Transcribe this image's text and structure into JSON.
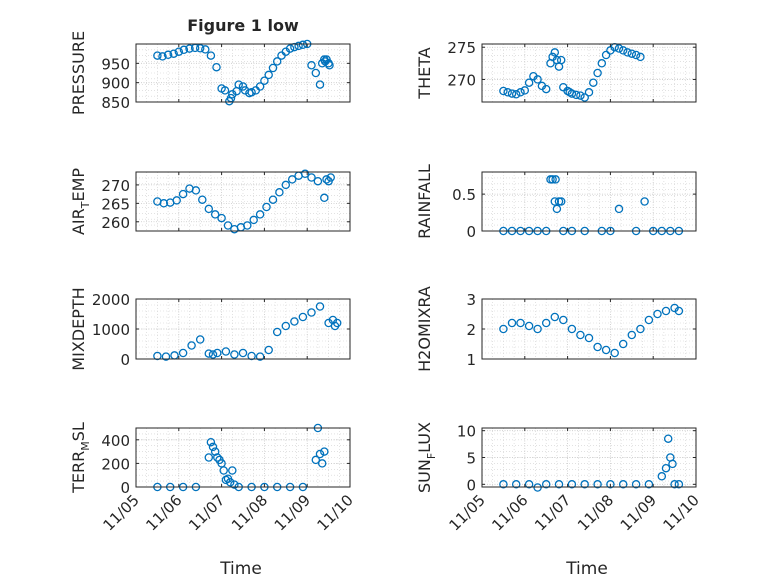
{
  "figure": {
    "title": "Figure 1 low"
  },
  "x_ticks": [
    "11/05",
    "11/06",
    "11/07",
    "11/08",
    "11/09",
    "11/10"
  ],
  "xlabel": "Time",
  "marker_color": "#0072BD",
  "chart_data": [
    {
      "type": "scatter",
      "ylabel": "PRESSURE",
      "ylim": [
        850,
        1000
      ],
      "yticks": [
        850,
        900,
        950
      ],
      "xlim": [
        0,
        5
      ],
      "grid": true,
      "x": [
        0.5,
        0.62,
        0.75,
        0.88,
        1.0,
        1.12,
        1.25,
        1.38,
        1.5,
        1.62,
        1.75,
        1.88,
        2.0,
        2.08,
        2.18,
        2.22,
        2.25,
        2.35,
        2.4,
        2.5,
        2.55,
        2.65,
        2.7,
        2.8,
        2.9,
        3.0,
        3.1,
        3.2,
        3.3,
        3.4,
        3.5,
        3.6,
        3.7,
        3.8,
        3.9,
        4.0,
        4.1,
        4.2,
        4.3,
        4.35,
        4.4,
        4.42,
        4.45,
        4.5,
        4.52
      ],
      "y": [
        970,
        968,
        972,
        975,
        980,
        985,
        988,
        990,
        989,
        986,
        970,
        940,
        885,
        880,
        852,
        860,
        870,
        878,
        895,
        890,
        880,
        873,
        875,
        880,
        890,
        905,
        920,
        938,
        955,
        970,
        980,
        988,
        992,
        995,
        998,
        1000,
        945,
        925,
        895,
        950,
        960,
        955,
        960,
        950,
        945
      ]
    },
    {
      "type": "scatter",
      "ylabel": "THETA",
      "ylim": [
        266.5,
        275.5
      ],
      "yticks": [
        270,
        275
      ],
      "xlim": [
        0,
        5
      ],
      "grid": true,
      "x": [
        0.5,
        0.6,
        0.7,
        0.8,
        0.9,
        1.0,
        1.1,
        1.2,
        1.3,
        1.4,
        1.5,
        1.6,
        1.65,
        1.7,
        1.75,
        1.8,
        1.85,
        1.9,
        2.0,
        2.05,
        2.1,
        2.2,
        2.3,
        2.4,
        2.5,
        2.6,
        2.7,
        2.8,
        2.9,
        3.0,
        3.1,
        3.2,
        3.3,
        3.4,
        3.5,
        3.6,
        3.7
      ],
      "y": [
        268.2,
        268.0,
        267.8,
        267.7,
        268.0,
        268.3,
        269.5,
        270.5,
        270.0,
        269.0,
        268.5,
        272.5,
        273.5,
        274.2,
        273.0,
        272.0,
        273.0,
        268.8,
        268.2,
        268.0,
        267.8,
        267.6,
        267.5,
        267.2,
        268.0,
        269.5,
        271.0,
        272.5,
        273.8,
        274.5,
        275.0,
        274.8,
        274.5,
        274.2,
        274.0,
        273.8,
        273.5
      ]
    },
    {
      "type": "scatter",
      "ylabel": "AIR_TEMP",
      "ylim": [
        257.5,
        273.5
      ],
      "yticks": [
        260,
        265,
        270
      ],
      "xlim": [
        0,
        5
      ],
      "grid": true,
      "x": [
        0.5,
        0.65,
        0.8,
        0.95,
        1.1,
        1.25,
        1.4,
        1.55,
        1.7,
        1.85,
        2.0,
        2.15,
        2.3,
        2.45,
        2.6,
        2.75,
        2.9,
        3.05,
        3.2,
        3.35,
        3.5,
        3.65,
        3.8,
        3.95,
        4.1,
        4.25,
        4.4,
        4.45,
        4.5,
        4.55
      ],
      "y": [
        265.5,
        265.0,
        265.2,
        265.8,
        267.5,
        269.0,
        268.5,
        266.0,
        263.5,
        262.0,
        261.0,
        259.0,
        258.0,
        258.5,
        259.0,
        260.5,
        262.0,
        264.0,
        266.0,
        268.0,
        270.0,
        271.5,
        272.5,
        273.0,
        272.0,
        271.0,
        266.5,
        271.5,
        271.0,
        272.0
      ]
    },
    {
      "type": "scatter",
      "ylabel": "RAINFALL",
      "ylim": [
        0,
        0.8
      ],
      "yticks": [
        0,
        0.5
      ],
      "xlim": [
        0,
        5
      ],
      "grid": true,
      "x": [
        0.5,
        0.7,
        0.9,
        1.1,
        1.3,
        1.5,
        1.6,
        1.65,
        1.7,
        1.72,
        1.75,
        1.8,
        1.85,
        1.9,
        2.1,
        2.4,
        2.8,
        3.0,
        3.2,
        3.6,
        3.8,
        4.0,
        4.2,
        4.4,
        4.6
      ],
      "y": [
        0,
        0,
        0,
        0,
        0,
        0,
        0.7,
        0.7,
        0.4,
        0.7,
        0.3,
        0.4,
        0.4,
        0,
        0,
        0,
        0,
        0,
        0.3,
        0,
        0.4,
        0,
        0,
        0,
        0
      ]
    },
    {
      "type": "scatter",
      "ylabel": "MIXDEPTH",
      "ylim": [
        0,
        2000
      ],
      "yticks": [
        0,
        1000,
        2000
      ],
      "xlim": [
        0,
        5
      ],
      "grid": true,
      "x": [
        0.5,
        0.7,
        0.9,
        1.1,
        1.3,
        1.5,
        1.7,
        1.8,
        1.9,
        2.1,
        2.3,
        2.5,
        2.7,
        2.9,
        3.1,
        3.3,
        3.5,
        3.7,
        3.9,
        4.1,
        4.3,
        4.5,
        4.6,
        4.65,
        4.7
      ],
      "y": [
        100,
        80,
        120,
        200,
        450,
        650,
        180,
        150,
        200,
        250,
        150,
        200,
        100,
        80,
        300,
        900,
        1100,
        1250,
        1400,
        1550,
        1750,
        1200,
        1300,
        1100,
        1200
      ]
    },
    {
      "type": "scatter",
      "ylabel": "H2OMIXRA",
      "ylim": [
        1,
        3
      ],
      "yticks": [
        1,
        2,
        3
      ],
      "xlim": [
        0,
        5
      ],
      "grid": true,
      "x": [
        0.5,
        0.7,
        0.9,
        1.1,
        1.3,
        1.5,
        1.7,
        1.9,
        2.1,
        2.3,
        2.5,
        2.7,
        2.9,
        3.1,
        3.3,
        3.5,
        3.7,
        3.9,
        4.1,
        4.3,
        4.5,
        4.6
      ],
      "y": [
        2.0,
        2.2,
        2.2,
        2.1,
        2.0,
        2.2,
        2.4,
        2.3,
        2.0,
        1.8,
        1.7,
        1.4,
        1.3,
        1.2,
        1.5,
        1.8,
        2.0,
        2.3,
        2.5,
        2.6,
        2.7,
        2.6
      ]
    },
    {
      "type": "scatter",
      "ylabel": "TERR_MSL",
      "ylim": [
        0,
        500
      ],
      "yticks": [
        0,
        200,
        400
      ],
      "xlim": [
        0,
        5
      ],
      "grid": true,
      "x": [
        0.5,
        0.8,
        1.1,
        1.4,
        1.7,
        1.75,
        1.8,
        1.85,
        1.9,
        1.95,
        2.0,
        2.05,
        2.1,
        2.15,
        2.2,
        2.25,
        2.3,
        2.4,
        2.7,
        3.0,
        3.3,
        3.6,
        3.9,
        4.2,
        4.25,
        4.3,
        4.35,
        4.4
      ],
      "y": [
        0,
        0,
        0,
        0,
        250,
        380,
        340,
        300,
        250,
        230,
        200,
        140,
        60,
        70,
        40,
        140,
        20,
        0,
        0,
        0,
        0,
        0,
        0,
        230,
        500,
        280,
        200,
        300
      ]
    },
    {
      "type": "scatter",
      "ylabel": "SUN_FLUX",
      "ylim": [
        -0.5,
        10.5
      ],
      "yticks": [
        0,
        5,
        10
      ],
      "xlim": [
        0,
        5
      ],
      "grid": true,
      "x": [
        0.5,
        0.8,
        1.1,
        1.3,
        1.5,
        1.8,
        2.1,
        2.4,
        2.7,
        3.0,
        3.3,
        3.6,
        3.9,
        4.2,
        4.3,
        4.35,
        4.4,
        4.45,
        4.5,
        4.6
      ],
      "y": [
        0,
        0,
        0,
        -0.6,
        0,
        0,
        0,
        0,
        0,
        0,
        0,
        0,
        0,
        1.5,
        3.0,
        8.5,
        5.0,
        3.8,
        0,
        0
      ]
    }
  ]
}
